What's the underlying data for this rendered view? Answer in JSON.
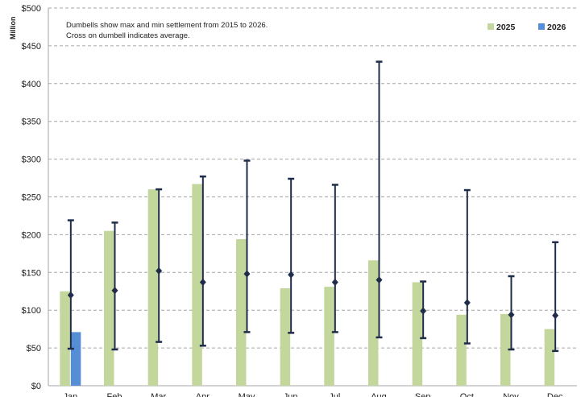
{
  "chart_data": {
    "type": "bar",
    "ylabel": "Million",
    "ylim": [
      0,
      500
    ],
    "y_ticks": [
      "$0",
      "$50",
      "$100",
      "$150",
      "$200",
      "$250",
      "$300",
      "$350",
      "$400",
      "$450",
      "$500"
    ],
    "y_tick_values": [
      0,
      50,
      100,
      150,
      200,
      250,
      300,
      350,
      400,
      450,
      500
    ],
    "grid": true,
    "legend_position": "top-right",
    "annotation_lines": [
      "Dumbells show max and min settlement from 2015 to 2026.",
      "Cross on dumbell indicates average."
    ],
    "categories": [
      "Jan",
      "Feb",
      "Mar",
      "Apr",
      "May",
      "Jun",
      "Jul",
      "Aug",
      "Sep",
      "Oct",
      "Nov",
      "Dec"
    ],
    "series": [
      {
        "name": "2025",
        "color": "#c3d69b",
        "values": [
          125,
          205,
          260,
          267,
          194,
          129,
          131,
          166,
          137,
          94,
          95,
          75
        ]
      },
      {
        "name": "2026",
        "color": "#558ed5",
        "values": [
          71,
          null,
          null,
          null,
          null,
          null,
          null,
          null,
          null,
          null,
          null,
          null
        ]
      }
    ],
    "dumbbells": {
      "color": "#1f2d4a",
      "max": [
        219,
        216,
        260,
        277,
        298,
        274,
        266,
        429,
        138,
        259,
        145,
        190
      ],
      "min": [
        49,
        48,
        58,
        53,
        71,
        70,
        71,
        64,
        63,
        56,
        48,
        46
      ],
      "avg": [
        120,
        126,
        152,
        137,
        148,
        147,
        137,
        140,
        99,
        110,
        94,
        93
      ]
    }
  }
}
